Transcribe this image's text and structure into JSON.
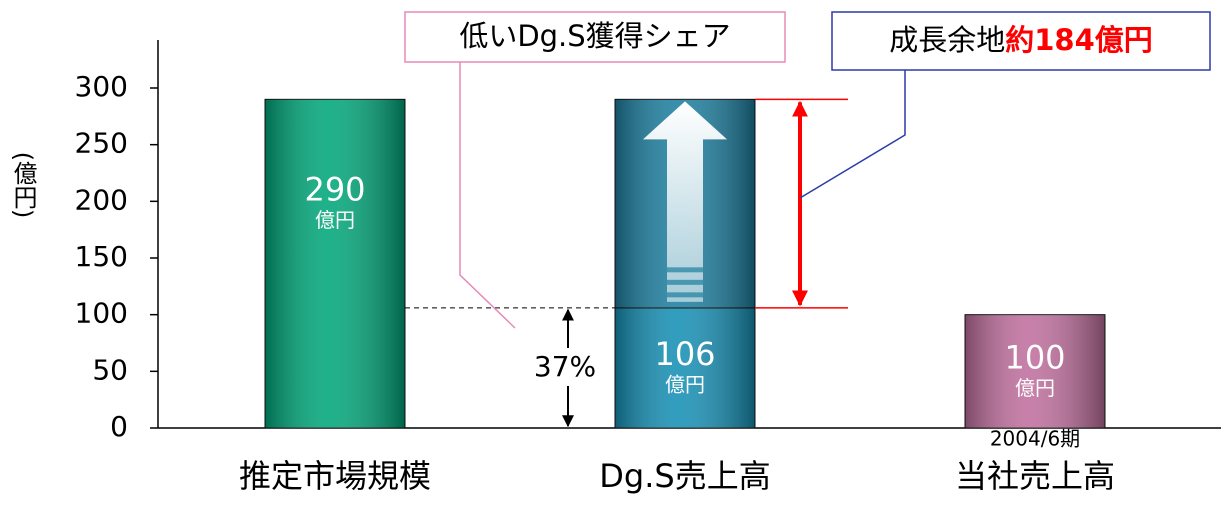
{
  "chart_data": {
    "type": "bar",
    "categories": [
      "推定市場規模",
      "Dg.S売上高",
      "当社売上高"
    ],
    "series": [
      {
        "values": [
          290,
          106,
          100
        ],
        "colors": [
          "#00a77a",
          "#1690b5",
          "#c06f9e"
        ]
      },
      {
        "name": "成長余地",
        "values": [
          null,
          184,
          null
        ],
        "value_labels": [
          null,
          "約184億円",
          null
        ],
        "color": "#1d7fa0"
      }
    ],
    "unit": "億円",
    "y_label": "(億円)",
    "ylim": [
      0,
      300
    ],
    "yticks": [
      0,
      50,
      100,
      150,
      200,
      250,
      300
    ],
    "share_callout": "低いDg.S獲得シェア",
    "share_label": {
      "value": 37,
      "label": "37%"
    },
    "period_note": "2004/6期"
  }
}
